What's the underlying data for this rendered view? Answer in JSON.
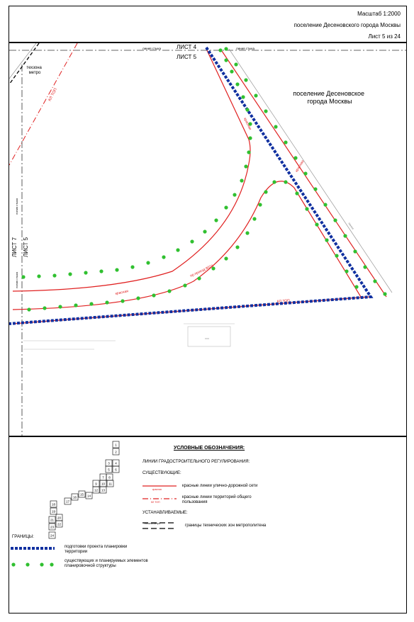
{
  "header": {
    "scale": "Масштаб 1:2000",
    "settlement": "поселение Десеновского города Москвы",
    "sheet": "Лист 5 из 24"
  },
  "map": {
    "sheet_top": "ЛИСТ 4",
    "sheet_bottom": "ЛИСТ 5",
    "sheet_left_outer": "ЛИСТ 7",
    "sheet_left_inner": "ЛИСТ 5",
    "joint_line_top_left": "линия стыка",
    "joint_line_top_right": "линия стыка",
    "joint_line_left_upper": "линия стыка",
    "joint_line_left_lower": "линия стыка",
    "techzone": "техзона\nметро",
    "kl_top_nw": "КЛ ТОП",
    "kl_top_s": "КЛ ТОП",
    "settlement_label": "поселение Десеновское\nгорода Москвы",
    "red_label_curve": "красная",
    "red_label_diag": "красная",
    "red_label_bottom": "красная",
    "passage_label": "пр.проезд 8024",
    "gray_label": "линия",
    "building_label": "ххх"
  },
  "legend": {
    "title": "УСЛОВНЫЕ ОБОЗНАЧЕНИЯ:",
    "regulation": "ЛИНИИ ГРАДОСТРОИТЕЛЬНОГО РЕГУЛИРОВАНИЯ:",
    "existing": "СУЩЕСТВУЮЩИЕ:",
    "red_street_sample": "красная",
    "red_street": "красные линии улично-дорожной сети",
    "red_public_sample": "КЛ ТОП",
    "red_public": "красные линии территорий общего пользования",
    "established": "УСТАНАВЛИВАЕМЫЕ:",
    "metro_sample": "техзона метро",
    "metro_zones": "границы технических зон метрополитена",
    "borders": "ГРАНИЦЫ:",
    "planning_project": "подготовки проекта планировки территории",
    "elements": "существующих и планируемых элементов планировочной структуры",
    "sheet_index": [
      "1",
      "2",
      "3",
      "4",
      "5",
      "6",
      "7",
      "8",
      "9",
      "10",
      "11",
      "12",
      "13",
      "14",
      "15",
      "16",
      "17",
      "18",
      "19",
      "20",
      "21",
      "22",
      "23",
      "24"
    ]
  },
  "colors": {
    "red": "#e02020",
    "blue": "#1030a0",
    "green": "#30c030",
    "gray": "#888888"
  }
}
